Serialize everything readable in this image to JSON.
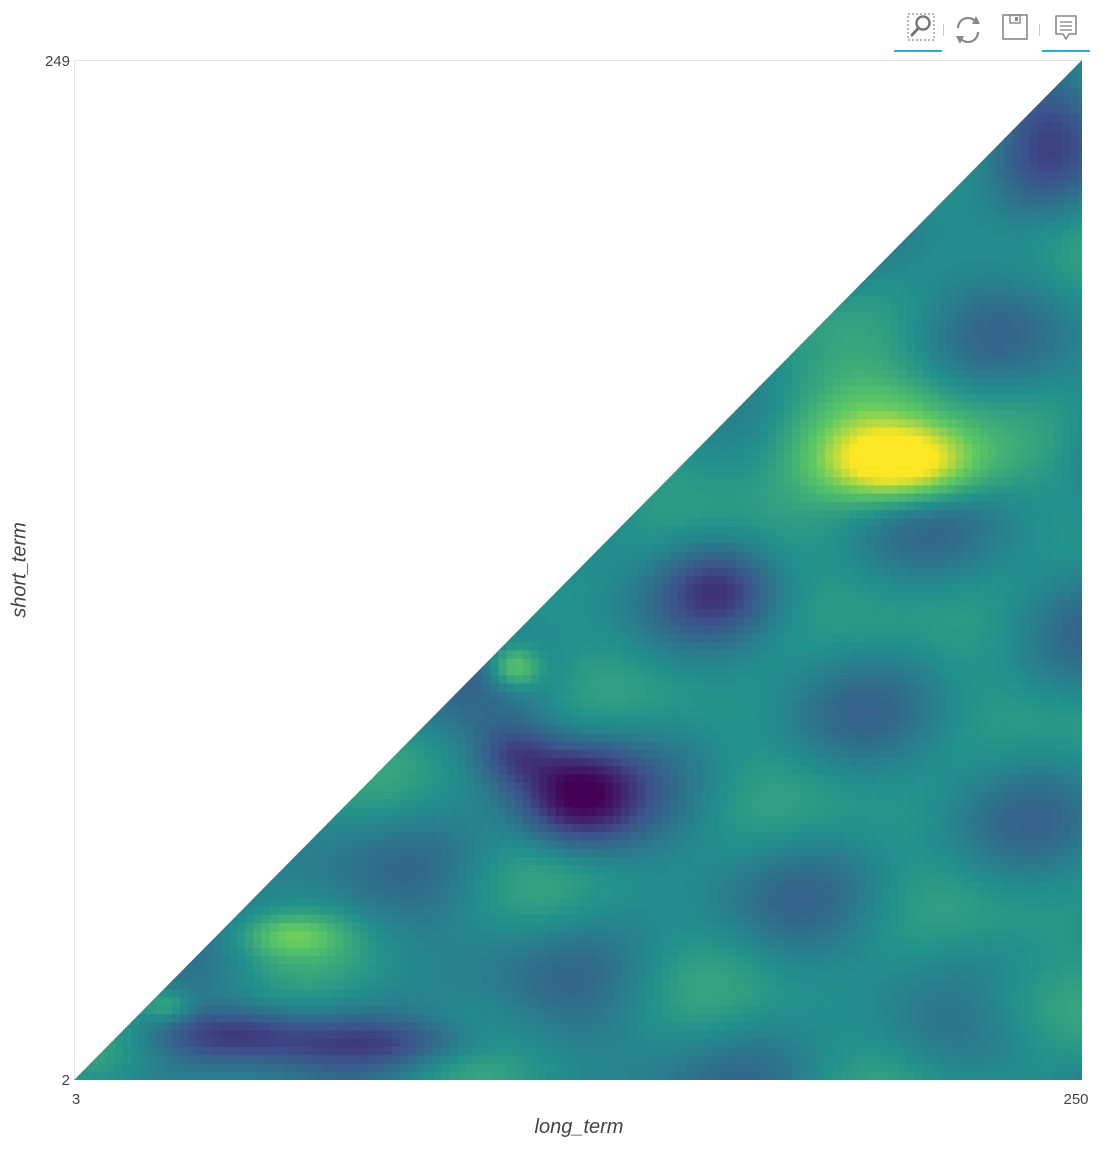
{
  "toolbar": {
    "tools": [
      {
        "name": "box-zoom",
        "icon": "box-zoom-icon",
        "active": true
      },
      {
        "name": "reset",
        "icon": "reset-icon",
        "active": false
      },
      {
        "name": "save",
        "icon": "save-icon",
        "active": false
      },
      {
        "name": "hover",
        "icon": "hover-tooltip-icon",
        "active": true
      }
    ],
    "active_color": "#26aae1"
  },
  "chart_data": {
    "type": "heatmap",
    "xlabel": "long_term",
    "ylabel": "short_term",
    "x_range": [
      3,
      250
    ],
    "y_range": [
      2,
      249
    ],
    "y_top_tick_label": "249",
    "y_bottom_tick_label": "2",
    "x_first_tick_label": "3",
    "x_last_tick_label": "250",
    "mask": "cells defined only where short_term < long_term (lower-right triangle)",
    "colormap": [
      "#440154",
      "#3b528b",
      "#21918c",
      "#5ec962",
      "#fde725"
    ],
    "regions": [
      {
        "long_term": [
          115,
          135
        ],
        "short_term": [
          55,
          80
        ],
        "level": "low"
      },
      {
        "long_term": [
          195,
          215
        ],
        "short_term": [
          140,
          160
        ],
        "level": "high"
      },
      {
        "long_term": [
          105,
          112
        ],
        "short_term": [
          95,
          105
        ],
        "level": "high"
      },
      {
        "long_term": [
          45,
          65
        ],
        "short_term": [
          30,
          40
        ],
        "level": "mid-high"
      }
    ]
  }
}
